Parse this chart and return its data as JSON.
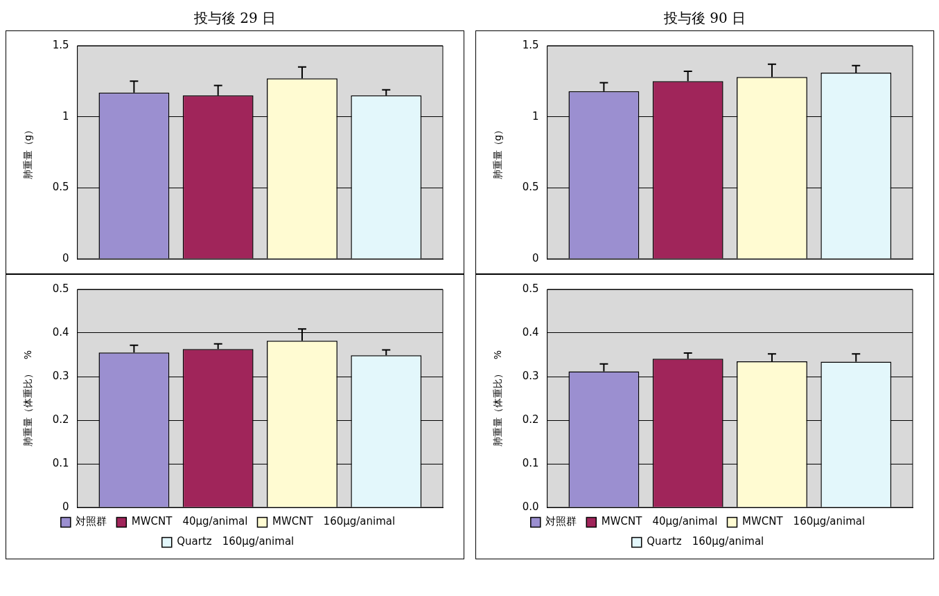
{
  "chart_data": [
    {
      "type": "bar",
      "title": "投与後 29 日",
      "ylabel": "肺重量（g）",
      "categories": [
        null
      ],
      "ylim": [
        0,
        1.5
      ],
      "yticks": [
        0,
        0.5,
        1,
        1.5
      ],
      "grid": "y",
      "legend": false,
      "tick_labels": "y",
      "series": [
        {
          "color": "#9b8fd0",
          "values": [
            1.17
          ],
          "errors": [
            [
              1.17,
              1.25
            ]
          ]
        },
        {
          "color": "#a0255a",
          "values": [
            1.15
          ],
          "errors": [
            [
              1.15,
              1.22
            ]
          ]
        },
        {
          "color": "#fffbd2",
          "values": [
            1.27
          ],
          "errors": [
            [
              1.27,
              1.35
            ]
          ]
        },
        {
          "color": "#e3f7fb",
          "values": [
            1.15
          ],
          "errors": [
            [
              1.15,
              1.19
            ]
          ]
        }
      ]
    },
    {
      "type": "bar",
      "title": "投与後 90 日",
      "ylabel": "肺重量（g）",
      "categories": [
        null
      ],
      "ylim": [
        0,
        1.5
      ],
      "yticks": [
        0,
        0.5,
        1,
        1.5
      ],
      "grid": "y",
      "legend": false,
      "tick_labels": "y",
      "series": [
        {
          "color": "#9b8fd0",
          "values": [
            1.18
          ],
          "errors": [
            [
              1.18,
              1.24
            ]
          ]
        },
        {
          "color": "#a0255a",
          "values": [
            1.25
          ],
          "errors": [
            [
              1.25,
              1.32
            ]
          ]
        },
        {
          "color": "#fffbd2",
          "values": [
            1.28
          ],
          "errors": [
            [
              1.28,
              1.37
            ]
          ]
        },
        {
          "color": "#e3f7fb",
          "values": [
            1.31
          ],
          "errors": [
            [
              1.31,
              1.36
            ]
          ]
        }
      ]
    },
    {
      "type": "bar",
      "ylabel": "肺重量（体重比）　%",
      "categories": [
        null
      ],
      "ylim": [
        0,
        0.5
      ],
      "yticks": [
        0,
        0.1,
        0.2,
        0.3,
        0.4,
        0.5
      ],
      "grid": "y",
      "legend": "bottom",
      "tick_labels": "y",
      "series": [
        {
          "name": "対照群",
          "color": "#9b8fd0",
          "values": [
            0.355
          ],
          "errors": [
            [
              0.355,
              0.372
            ]
          ]
        },
        {
          "name": "MWCNT　40μg/animal",
          "color": "#a0255a",
          "values": [
            0.363
          ],
          "errors": [
            [
              0.363,
              0.375
            ]
          ]
        },
        {
          "name": "MWCNT　160μg/animal",
          "color": "#fffbd2",
          "values": [
            0.382
          ],
          "errors": [
            [
              0.382,
              0.409
            ]
          ]
        },
        {
          "name": "Quartz　160μg/animal",
          "color": "#e3f7fb",
          "values": [
            0.349
          ],
          "errors": [
            [
              0.349,
              0.361
            ]
          ]
        }
      ]
    },
    {
      "type": "bar",
      "ylabel": "肺重量（体重比）　%",
      "categories": [
        null
      ],
      "ylim": [
        0,
        0.5
      ],
      "yticks": [
        {
          "value": 0,
          "label": "0.0"
        },
        0.1,
        0.2,
        0.3,
        0.4,
        0.5
      ],
      "grid": "y",
      "legend": "bottom",
      "tick_labels": "y",
      "series": [
        {
          "name": "対照群",
          "color": "#9b8fd0",
          "values": [
            0.312
          ],
          "errors": [
            [
              0.312,
              0.329
            ]
          ]
        },
        {
          "name": "MWCNT　40μg/animal",
          "color": "#a0255a",
          "values": [
            0.341
          ],
          "errors": [
            [
              0.341,
              0.354
            ]
          ]
        },
        {
          "name": "MWCNT　160μg/animal",
          "color": "#fffbd2",
          "values": [
            0.335
          ],
          "errors": [
            [
              0.335,
              0.352
            ]
          ]
        },
        {
          "name": "Quartz　160μg/animal",
          "color": "#e3f7fb",
          "values": [
            0.334
          ],
          "errors": [
            [
              0.334,
              0.352
            ]
          ]
        }
      ]
    }
  ]
}
